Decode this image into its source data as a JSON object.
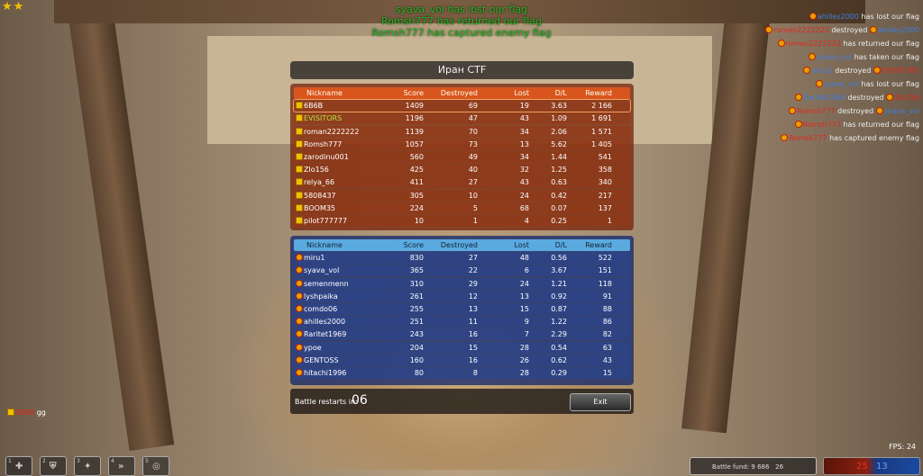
{
  "stars": "★★",
  "center_messages": [
    "syava_vol has lost our flag",
    "Romsh777 has returned our flag",
    "Romsh777 has captured enemy flag"
  ],
  "kill_feed": [
    {
      "a": "ahilles2000",
      "ac": "bl",
      "t": "has lost our flag"
    },
    {
      "a": "roman2222222",
      "ac": "rd",
      "t": "destroyed",
      "b": "ahilles2000",
      "bc": "bl"
    },
    {
      "a": "roman2222222",
      "ac": "rd",
      "t": "has returned our flag"
    },
    {
      "a": "syava_vol",
      "ac": "bl",
      "t": "has taken our flag"
    },
    {
      "a": "miru1",
      "ac": "bl",
      "t": "destroyed",
      "b": "EVISITORS",
      "bc": "rd"
    },
    {
      "a": "syava_vol",
      "ac": "bl",
      "t": "has lost our flag"
    },
    {
      "a": "Raritet1969",
      "ac": "bl",
      "t": "destroyed",
      "b": "Zlo156",
      "bc": "rd"
    },
    {
      "a": "Romsh777",
      "ac": "rd",
      "t": "destroyed",
      "b": "syava_vol",
      "bc": "bl"
    },
    {
      "a": "Romsh777",
      "ac": "rd",
      "t": "has returned our flag"
    },
    {
      "a": "Romsh777",
      "ac": "rd",
      "t": "has captured enemy flag"
    }
  ],
  "title": "Иран CTF",
  "columns": [
    "Nickname",
    "Score",
    "Destroyed",
    "Lost",
    "D/L",
    "Reward"
  ],
  "red_team": [
    [
      "6B6B",
      "1409",
      "69",
      "19",
      "3.63",
      "2 166"
    ],
    [
      "EVISITORS",
      "1196",
      "47",
      "43",
      "1.09",
      "1 691"
    ],
    [
      "roman2222222",
      "1139",
      "70",
      "34",
      "2.06",
      "1 571"
    ],
    [
      "Romsh777",
      "1057",
      "73",
      "13",
      "5.62",
      "1 405"
    ],
    [
      "zarodinu001",
      "560",
      "49",
      "34",
      "1.44",
      "541"
    ],
    [
      "Zlo156",
      "425",
      "40",
      "32",
      "1.25",
      "358"
    ],
    [
      "relya_66",
      "411",
      "27",
      "43",
      "0.63",
      "340"
    ],
    [
      "5808437",
      "305",
      "10",
      "24",
      "0.42",
      "217"
    ],
    [
      "BOOM35",
      "224",
      "5",
      "68",
      "0.07",
      "137"
    ],
    [
      "pilot777777",
      "10",
      "1",
      "4",
      "0.25",
      "1"
    ]
  ],
  "blue_team": [
    [
      "miru1",
      "830",
      "27",
      "48",
      "0.56",
      "522"
    ],
    [
      "syava_vol",
      "365",
      "22",
      "6",
      "3.67",
      "151"
    ],
    [
      "semenmenn",
      "310",
      "29",
      "24",
      "1.21",
      "118"
    ],
    [
      "lyshpaika",
      "261",
      "12",
      "13",
      "0.92",
      "91"
    ],
    [
      "comdo06",
      "255",
      "13",
      "15",
      "0.87",
      "88"
    ],
    [
      "ahilles2000",
      "251",
      "11",
      "9",
      "1.22",
      "86"
    ],
    [
      "Raritet1969",
      "243",
      "16",
      "7",
      "2.29",
      "82"
    ],
    [
      "ypoe",
      "204",
      "15",
      "28",
      "0.54",
      "63"
    ],
    [
      "GENTOSS",
      "160",
      "16",
      "26",
      "0.62",
      "43"
    ],
    [
      "hitachi1996",
      "80",
      "8",
      "28",
      "0.29",
      "15"
    ]
  ],
  "restart_label": "Battle restarts in:",
  "restart_value": "06",
  "exit_label": "Exit",
  "chat": {
    "user": "6B6B",
    "message": "gg"
  },
  "fps": "FPS: 24",
  "tools": [
    {
      "key": "1",
      "icon": "first-aid-icon"
    },
    {
      "key": "2",
      "icon": "armor-icon"
    },
    {
      "key": "3",
      "icon": "double-damage-icon"
    },
    {
      "key": "4",
      "icon": "nitro-icon"
    },
    {
      "key": "5",
      "icon": "mine-icon"
    }
  ],
  "battle_fund": "Battle fund: 9 686",
  "players_count": "26",
  "score": {
    "red": "25",
    "blue": "13"
  },
  "colors": {
    "red_team": "#d8551e",
    "blue_team": "#5aaae0",
    "center_msg": "#22b822"
  }
}
